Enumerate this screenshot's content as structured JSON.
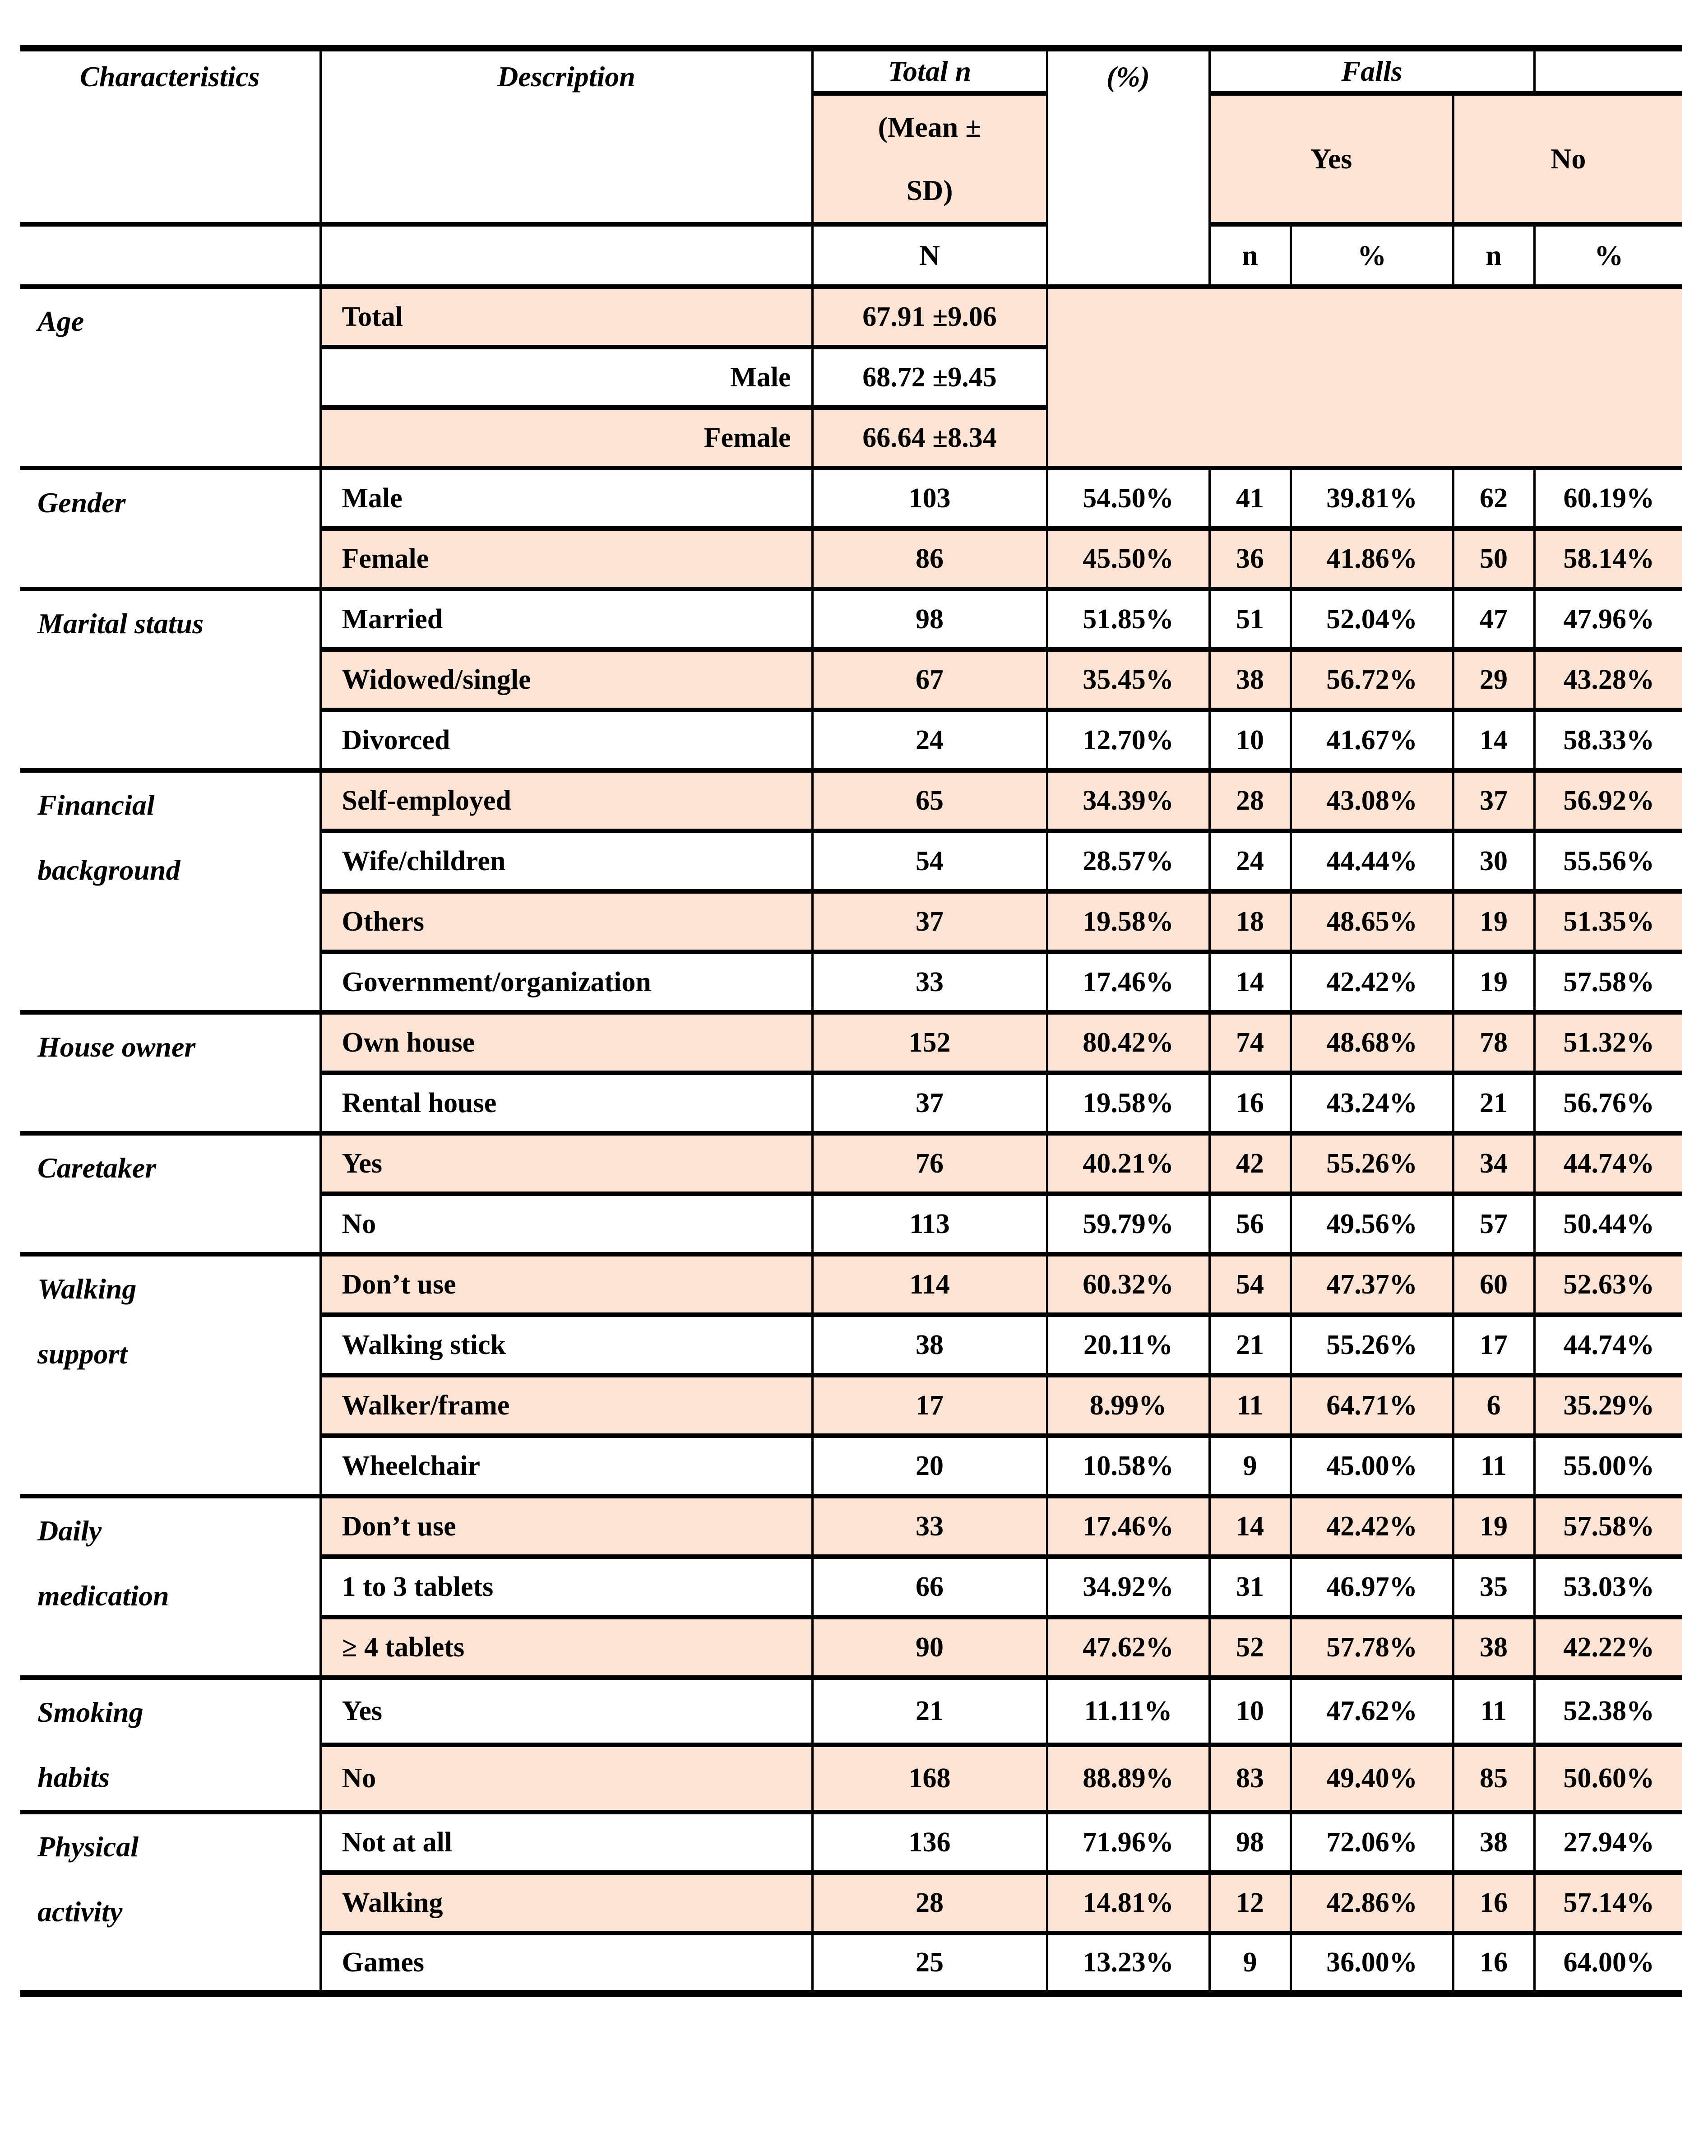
{
  "colors": {
    "accent": "#fce3d4",
    "border": "#000000"
  },
  "table": {
    "header": {
      "characteristics": "Characteristics",
      "description": "Description",
      "total_n": "Total n",
      "percent": "(%)",
      "falls": "Falls",
      "mean_sd_lines": [
        "(Mean ±",
        "SD)"
      ],
      "yes": "Yes",
      "no": "No",
      "n_total": "N",
      "yes_n": "n",
      "yes_pct": "%",
      "no_n": "n",
      "no_pct": "%"
    },
    "age_block": {
      "label_lines": [
        "Age"
      ],
      "rows": [
        {
          "desc": "Total",
          "value": "67.91 ±9.06",
          "shade": true,
          "align": "left"
        },
        {
          "desc": "Male",
          "value": "68.72 ±9.45",
          "shade": false,
          "align": "right"
        },
        {
          "desc": "Female",
          "value": "66.64 ±8.34",
          "shade": true,
          "align": "right"
        }
      ]
    },
    "blocks": [
      {
        "label_lines": [
          "Gender"
        ],
        "rows": [
          {
            "desc": "Male",
            "total": "103",
            "pct": "54.50%",
            "yes_n": "41",
            "yes_pct": "39.81%",
            "no_n": "62",
            "no_pct": "60.19%",
            "shade": false
          },
          {
            "desc": "Female",
            "total": "86",
            "pct": "45.50%",
            "yes_n": "36",
            "yes_pct": "41.86%",
            "no_n": "50",
            "no_pct": "58.14%",
            "shade": true
          }
        ]
      },
      {
        "label_lines": [
          "Marital status"
        ],
        "rows": [
          {
            "desc": "Married",
            "total": "98",
            "pct": "51.85%",
            "yes_n": "51",
            "yes_pct": "52.04%",
            "no_n": "47",
            "no_pct": "47.96%",
            "shade": false
          },
          {
            "desc": "Widowed/single",
            "total": "67",
            "pct": "35.45%",
            "yes_n": "38",
            "yes_pct": "56.72%",
            "no_n": "29",
            "no_pct": "43.28%",
            "shade": true
          },
          {
            "desc": "Divorced",
            "total": "24",
            "pct": "12.70%",
            "yes_n": "10",
            "yes_pct": "41.67%",
            "no_n": "14",
            "no_pct": "58.33%",
            "shade": false
          }
        ]
      },
      {
        "label_lines": [
          "Financial",
          "background"
        ],
        "rows": [
          {
            "desc": "Self-employed",
            "total": "65",
            "pct": "34.39%",
            "yes_n": "28",
            "yes_pct": "43.08%",
            "no_n": "37",
            "no_pct": "56.92%",
            "shade": true
          },
          {
            "desc": "Wife/children",
            "total": "54",
            "pct": "28.57%",
            "yes_n": "24",
            "yes_pct": "44.44%",
            "no_n": "30",
            "no_pct": "55.56%",
            "shade": false
          },
          {
            "desc": "Others",
            "total": "37",
            "pct": "19.58%",
            "yes_n": "18",
            "yes_pct": "48.65%",
            "no_n": "19",
            "no_pct": "51.35%",
            "shade": true
          },
          {
            "desc": "Government/organization",
            "total": "33",
            "pct": "17.46%",
            "yes_n": "14",
            "yes_pct": "42.42%",
            "no_n": "19",
            "no_pct": "57.58%",
            "shade": false
          }
        ]
      },
      {
        "label_lines": [
          "House owner"
        ],
        "rows": [
          {
            "desc": "Own house",
            "total": "152",
            "pct": "80.42%",
            "yes_n": "74",
            "yes_pct": "48.68%",
            "no_n": "78",
            "no_pct": "51.32%",
            "shade": true
          },
          {
            "desc": "Rental house",
            "total": "37",
            "pct": "19.58%",
            "yes_n": "16",
            "yes_pct": "43.24%",
            "no_n": "21",
            "no_pct": "56.76%",
            "shade": false
          }
        ]
      },
      {
        "label_lines": [
          "Caretaker"
        ],
        "rows": [
          {
            "desc": "Yes",
            "total": "76",
            "pct": "40.21%",
            "yes_n": "42",
            "yes_pct": "55.26%",
            "no_n": "34",
            "no_pct": "44.74%",
            "shade": true
          },
          {
            "desc": "No",
            "total": "113",
            "pct": "59.79%",
            "yes_n": "56",
            "yes_pct": "49.56%",
            "no_n": "57",
            "no_pct": "50.44%",
            "shade": false
          }
        ]
      },
      {
        "label_lines": [
          "Walking",
          "support"
        ],
        "rows": [
          {
            "desc": "Don’t use",
            "total": "114",
            "pct": "60.32%",
            "yes_n": "54",
            "yes_pct": "47.37%",
            "no_n": "60",
            "no_pct": "52.63%",
            "shade": true
          },
          {
            "desc": "Walking stick",
            "total": "38",
            "pct": "20.11%",
            "yes_n": "21",
            "yes_pct": "55.26%",
            "no_n": "17",
            "no_pct": "44.74%",
            "shade": false
          },
          {
            "desc": "Walker/frame",
            "total": "17",
            "pct": "8.99%",
            "yes_n": "11",
            "yes_pct": "64.71%",
            "no_n": "6",
            "no_pct": "35.29%",
            "shade": true
          },
          {
            "desc": "Wheelchair",
            "total": "20",
            "pct": "10.58%",
            "yes_n": "9",
            "yes_pct": "45.00%",
            "no_n": "11",
            "no_pct": "55.00%",
            "shade": false
          }
        ]
      },
      {
        "label_lines": [
          "Daily",
          "medication"
        ],
        "rows": [
          {
            "desc": "Don’t use",
            "total": "33",
            "pct": "17.46%",
            "yes_n": "14",
            "yes_pct": "42.42%",
            "no_n": "19",
            "no_pct": "57.58%",
            "shade": true
          },
          {
            "desc": "1 to 3 tablets",
            "total": "66",
            "pct": "34.92%",
            "yes_n": "31",
            "yes_pct": "46.97%",
            "no_n": "35",
            "no_pct": "53.03%",
            "shade": false
          },
          {
            "desc": "≥ 4 tablets",
            "total": "90",
            "pct": "47.62%",
            "yes_n": "52",
            "yes_pct": "57.78%",
            "no_n": "38",
            "no_pct": "42.22%",
            "shade": true
          }
        ]
      },
      {
        "label_lines": [
          "Smoking",
          "habits"
        ],
        "rows": [
          {
            "desc": "Yes",
            "total": "21",
            "pct": "11.11%",
            "yes_n": "10",
            "yes_pct": "47.62%",
            "no_n": "11",
            "no_pct": "52.38%",
            "shade": false
          },
          {
            "desc": "No",
            "total": "168",
            "pct": "88.89%",
            "yes_n": "83",
            "yes_pct": "49.40%",
            "no_n": "85",
            "no_pct": "50.60%",
            "shade": true
          }
        ]
      },
      {
        "label_lines": [
          "Physical",
          "activity"
        ],
        "rows": [
          {
            "desc": "Not at all",
            "total": "136",
            "pct": "71.96%",
            "yes_n": "98",
            "yes_pct": "72.06%",
            "no_n": "38",
            "no_pct": "27.94%",
            "shade": false
          },
          {
            "desc": "Walking",
            "total": "28",
            "pct": "14.81%",
            "yes_n": "12",
            "yes_pct": "42.86%",
            "no_n": "16",
            "no_pct": "57.14%",
            "shade": true
          },
          {
            "desc": "Games",
            "total": "25",
            "pct": "13.23%",
            "yes_n": "9",
            "yes_pct": "36.00%",
            "no_n": "16",
            "no_pct": "64.00%",
            "shade": false
          }
        ]
      }
    ]
  }
}
